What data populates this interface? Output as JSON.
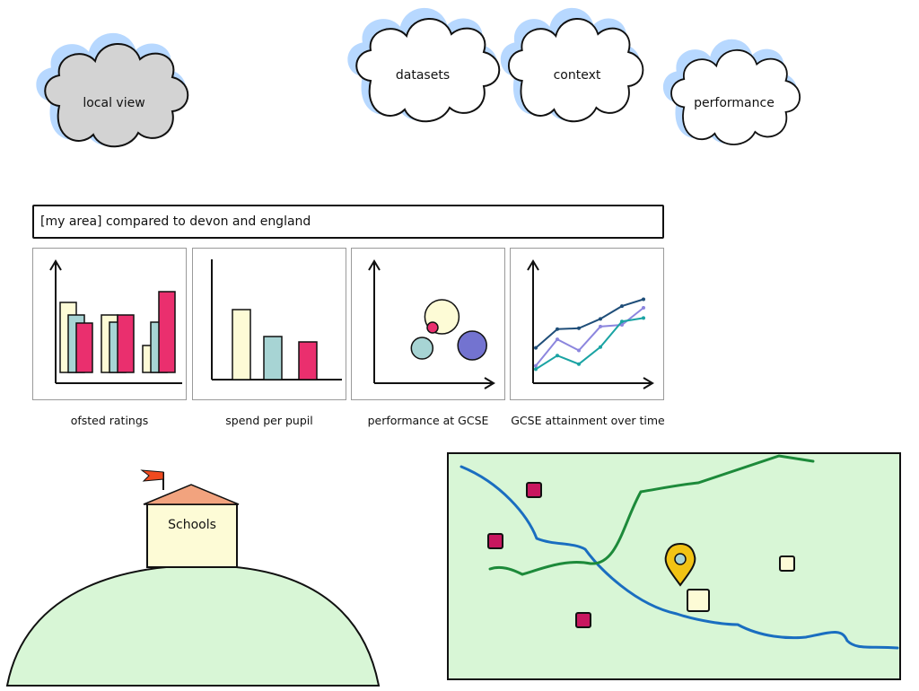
{
  "nav_clouds": [
    {
      "label": "local view",
      "active": true
    },
    {
      "label": "datasets",
      "active": false
    },
    {
      "label": "context",
      "active": false
    },
    {
      "label": "performance",
      "active": false
    }
  ],
  "comparison": {
    "title": "[my area] compared to devon and england"
  },
  "charts": {
    "captions": [
      "ofsted ratings",
      "spend per pupil",
      "performance at GCSE",
      "GCSE attainment over time"
    ]
  },
  "chart_data": [
    {
      "type": "bar",
      "categories": [
        "",
        "",
        ""
      ],
      "series": [
        {
          "values": [
            78,
            64,
            30
          ],
          "color": "#fdfbd6"
        },
        {
          "values": [
            64,
            56,
            56
          ],
          "color": "#a7d4d4"
        },
        {
          "values": [
            55,
            64,
            90
          ],
          "color": "#ea2f6e"
        }
      ]
    },
    {
      "type": "bar",
      "categories": [
        "",
        "",
        ""
      ],
      "values": [
        78,
        48,
        42
      ],
      "colors": [
        "#fdfbd6",
        "#a7d4d4",
        "#ea2f6e"
      ]
    },
    {
      "type": "scatter",
      "points": [
        {
          "x": 58,
          "y": 70,
          "r": 19,
          "color": "#fdfbd6"
        },
        {
          "x": 41,
          "y": 35,
          "r": 12,
          "color": "#a7d4d4"
        },
        {
          "x": 84,
          "y": 38,
          "r": 16,
          "color": "#7373d0"
        },
        {
          "x": 50,
          "y": 58,
          "r": 6,
          "color": "#ea2f6e"
        }
      ]
    },
    {
      "type": "line",
      "x": [
        0,
        1,
        2,
        3,
        4,
        5
      ],
      "series": [
        {
          "values": [
            33,
            55,
            56,
            67,
            82,
            90
          ],
          "color": "#1f4e79"
        },
        {
          "values": [
            12,
            43,
            30,
            58,
            60,
            80
          ],
          "color": "#8c86de"
        },
        {
          "values": [
            8,
            24,
            14,
            34,
            64,
            68
          ],
          "color": "#1aa3a3"
        }
      ]
    }
  ],
  "schools": {
    "label": "Schools"
  },
  "colors": {
    "cloud_fill": "#ffffff",
    "cloud_shadow": "#b7d8ff",
    "cloud_active_fill": "#d3d3d3",
    "map_background": "#d8f6d6",
    "river": "#1a6ec0",
    "road": "#1d8a3a",
    "hill": "#d8f6d6",
    "roof": "#f2a37e",
    "flag": "#ef4a1f",
    "school_building": "#fdfbd6",
    "map_marker": "#f2c314"
  },
  "map": {
    "icons": [
      "school-marker-icon",
      "location-pin-icon"
    ]
  }
}
